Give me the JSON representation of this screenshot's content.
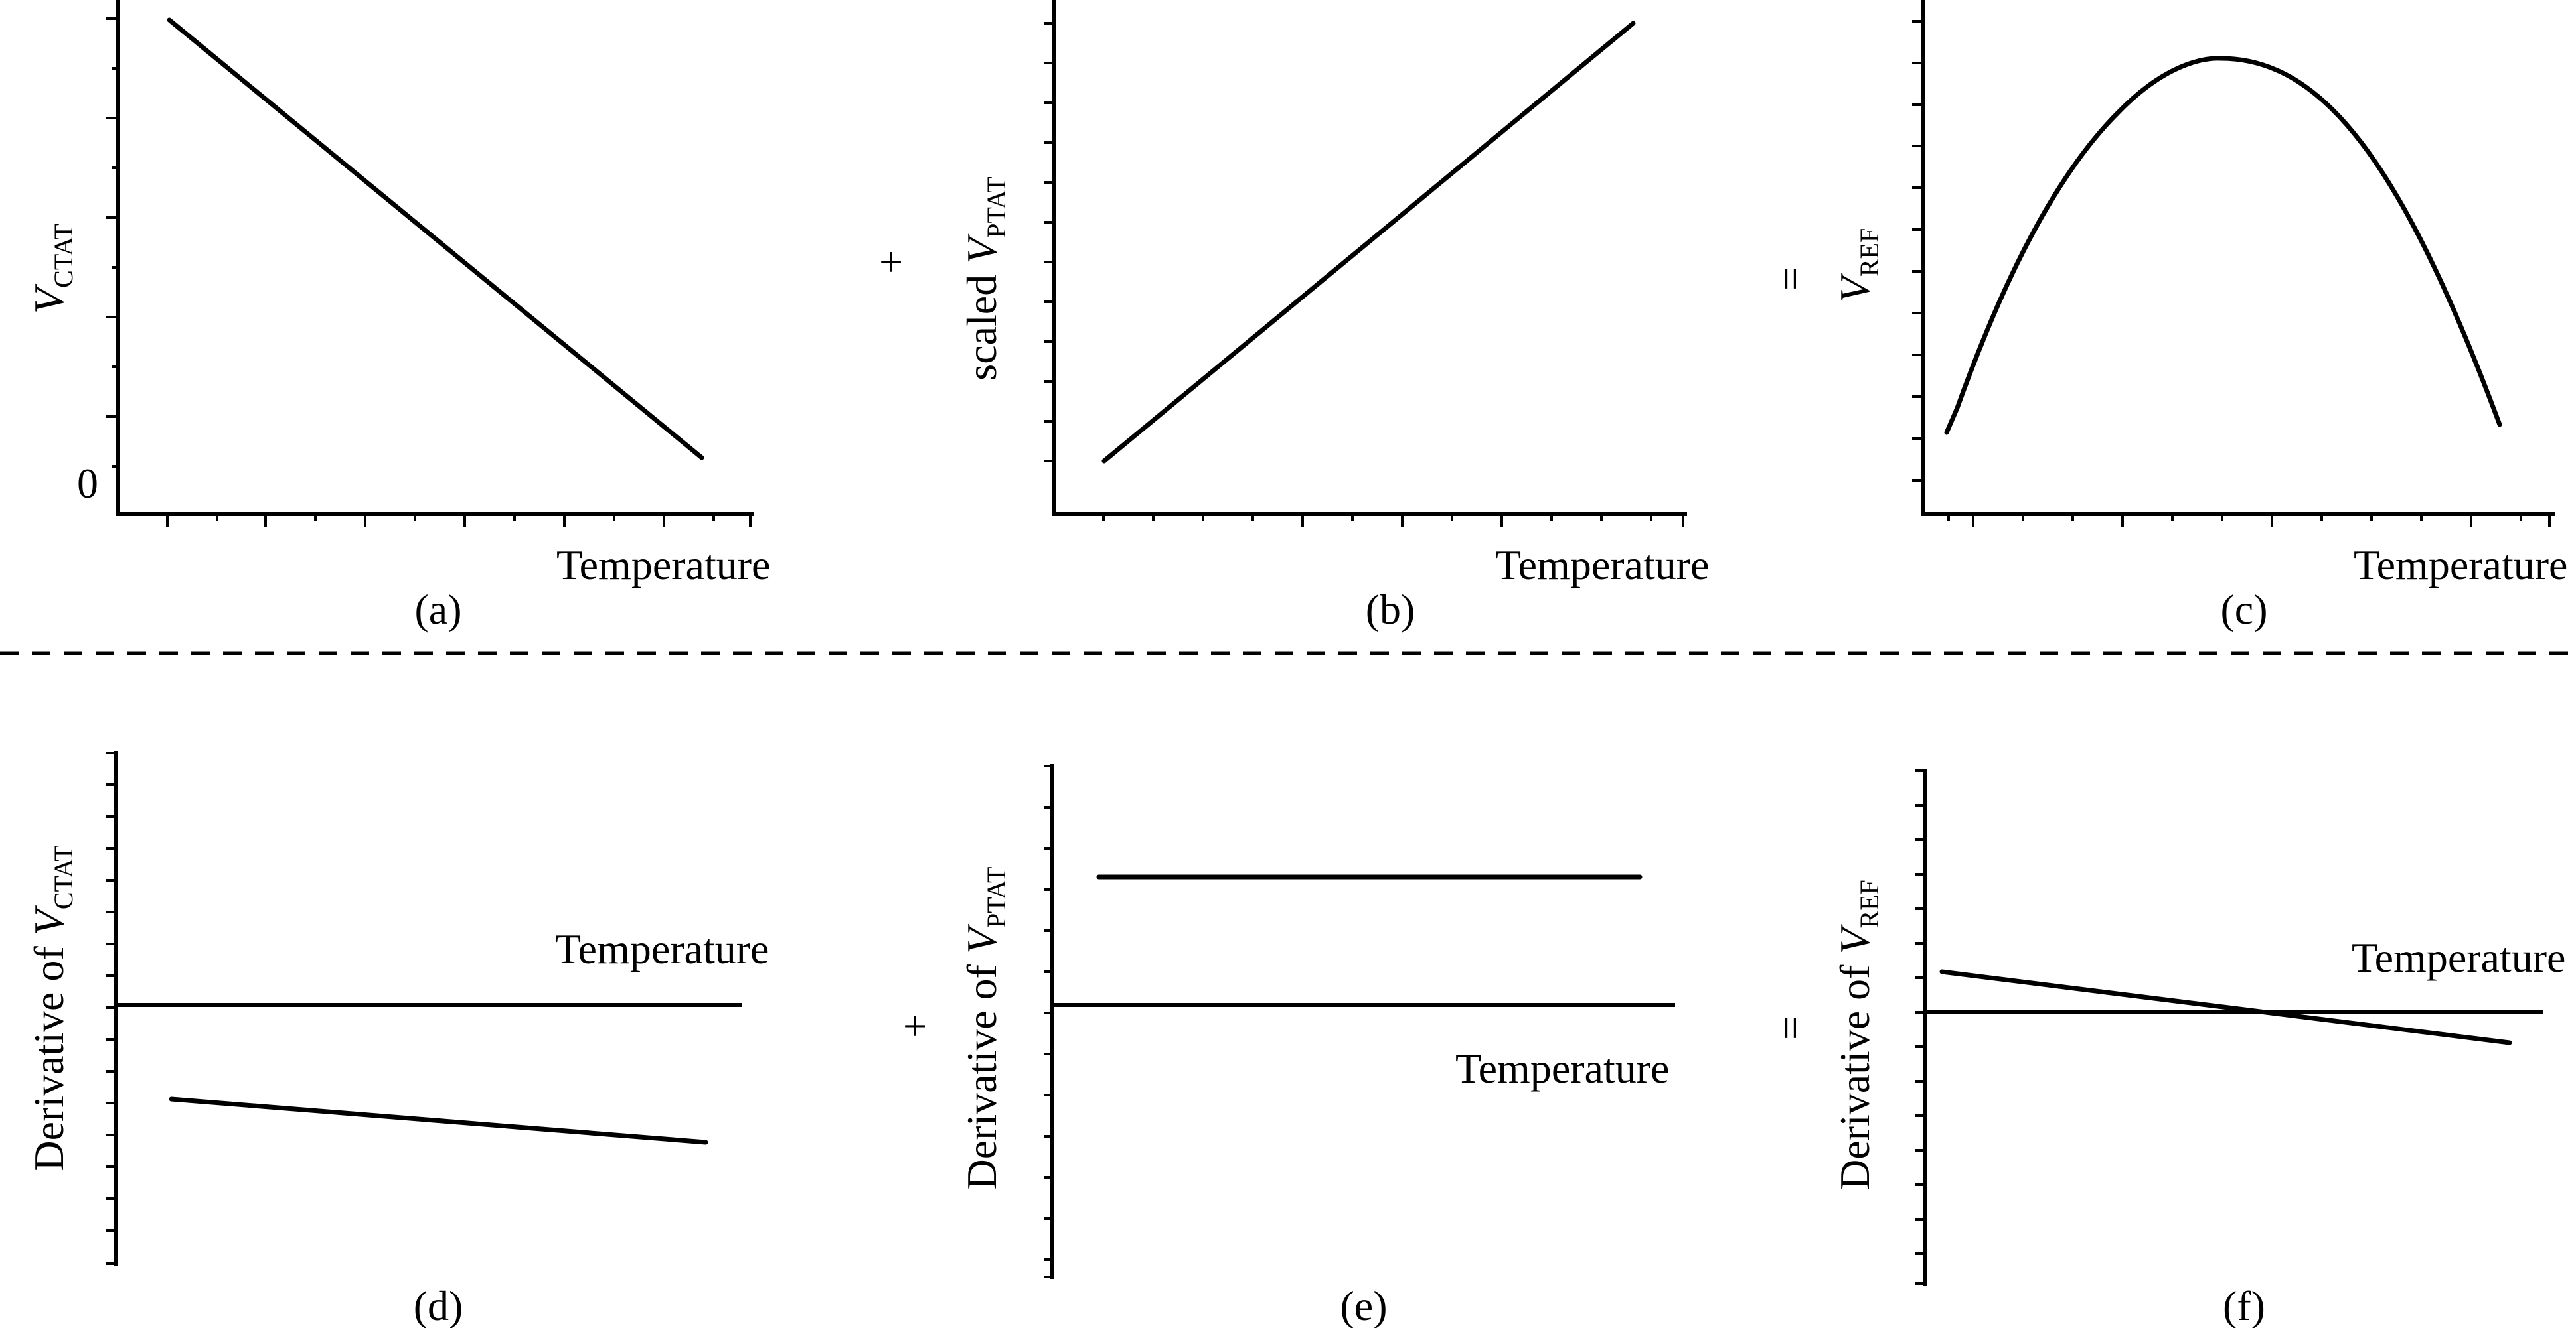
{
  "panels": {
    "a": {
      "caption": "(a)",
      "x_label": "Temperature",
      "y_label_prefix": "",
      "y_label_var": "V",
      "y_label_sub": "CTAT",
      "zero_label": "0",
      "operator": ""
    },
    "b": {
      "caption": "(b)",
      "x_label": "Temperature",
      "y_label_prefix": "scaled ",
      "y_label_var": "V",
      "y_label_sub": "PTAT",
      "operator": "+"
    },
    "c": {
      "caption": "(c)",
      "x_label": "Temperature",
      "y_label_prefix": "",
      "y_label_var": "V",
      "y_label_sub": "REF",
      "operator": "="
    },
    "d": {
      "caption": "(d)",
      "x_label": "Temperature",
      "y_label_prefix": "Derivative of ",
      "y_label_var": "V",
      "y_label_sub": "CTAT",
      "operator": ""
    },
    "e": {
      "caption": "(e)",
      "x_label": "Temperature",
      "y_label_prefix": "Derivative of ",
      "y_label_var": "V",
      "y_label_sub": "PTAT",
      "operator": "+"
    },
    "f": {
      "caption": "(f)",
      "x_label": "Temperature",
      "y_label_prefix": "Derivative of ",
      "y_label_var": "V",
      "y_label_sub": "REF",
      "operator": "="
    }
  },
  "curves": {
    "ctat": "decreasing linear",
    "ptat_scaled": "increasing linear",
    "ref": "concave-down parabola with maximum near mid temperature",
    "ctat_derivative": "negative, slightly decreasing",
    "ptat_derivative": "positive constant",
    "ref_derivative": "decreasing line crossing zero"
  }
}
